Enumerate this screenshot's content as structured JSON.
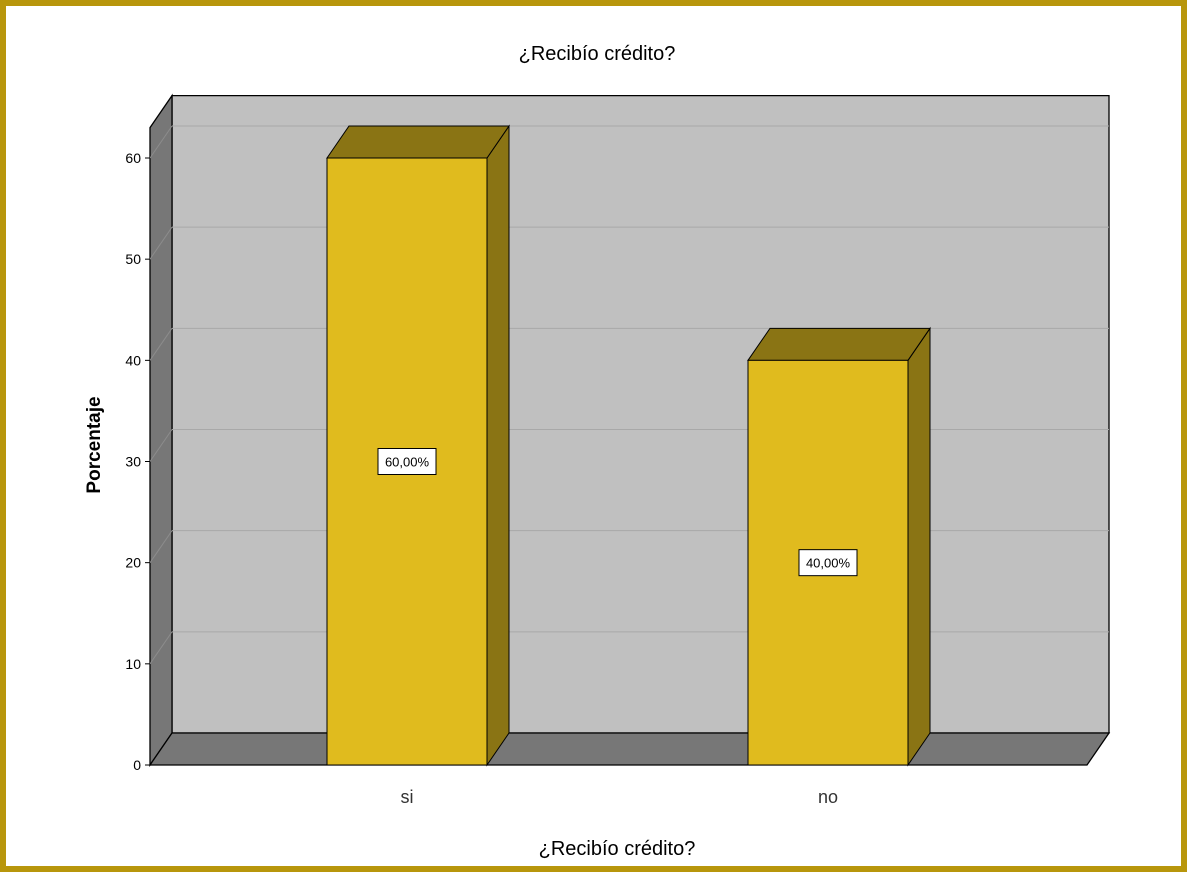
{
  "chart_data": {
    "type": "bar",
    "title": "¿Recibío crédito?",
    "xlabel": "¿Recibío crédito?",
    "ylabel": "Porcentaje",
    "categories": [
      "si",
      "no"
    ],
    "values": [
      60,
      40
    ],
    "data_labels": [
      "60,00%",
      "40,00%"
    ],
    "yticks": [
      "0",
      "10",
      "20",
      "30",
      "40",
      "50",
      "60"
    ],
    "ylim": [
      0,
      63
    ],
    "grid": true,
    "legend": "none",
    "colors": {
      "bar_front": "#e0bb1e",
      "bar_top": "#8a7414",
      "bar_side": "#8a7414",
      "plot_back": "#c0c0c0",
      "floor": "#777777",
      "wall_left": "#777777",
      "border": "#b8960c"
    }
  }
}
